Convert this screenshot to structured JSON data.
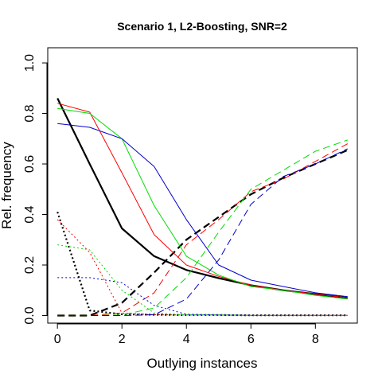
{
  "chart_data": {
    "type": "line",
    "title": "Scenario 1, L2-Boosting, SNR=2",
    "xlabel": "Outlying instances",
    "ylabel": "Rel. frequency",
    "xlim": [
      -0.3,
      9.3
    ],
    "ylim": [
      -0.03,
      1.06
    ],
    "xticks": [
      0,
      2,
      4,
      6,
      8
    ],
    "yticks": [
      0.0,
      0.2,
      0.4,
      0.6,
      0.8,
      1.0
    ],
    "xtick_labels": [
      "0",
      "2",
      "4",
      "6",
      "8"
    ],
    "ytick_labels": [
      "0.0",
      "0.2",
      "0.4",
      "0.6",
      "0.8",
      "1.0"
    ],
    "grid": false,
    "legend": "none",
    "x": [
      0,
      1,
      2,
      3,
      4,
      5,
      6,
      7,
      8,
      9
    ],
    "series": [
      {
        "color": "#000000",
        "dash": "solid",
        "width": 2.2,
        "values": [
          0.86,
          0.6,
          0.345,
          0.235,
          0.18,
          0.148,
          0.12,
          0.1,
          0.085,
          0.07
        ]
      },
      {
        "color": "#000000",
        "dash": "longdash",
        "width": 2.2,
        "values": [
          0.0,
          0.0,
          0.05,
          0.17,
          0.3,
          0.39,
          0.48,
          0.545,
          0.6,
          0.655
        ]
      },
      {
        "color": "#000000",
        "dash": "dotted",
        "width": 2.2,
        "values": [
          0.41,
          0.02,
          0.005,
          0.003,
          0.002,
          0.002,
          0.001,
          0.001,
          0.001,
          0.001
        ]
      },
      {
        "color": "#ff0000",
        "dash": "solid",
        "width": 1,
        "values": [
          0.84,
          0.805,
          0.565,
          0.32,
          0.2,
          0.155,
          0.12,
          0.1,
          0.085,
          0.07
        ]
      },
      {
        "color": "#ff0000",
        "dash": "longdash",
        "width": 1,
        "values": [
          0.0,
          0.0,
          0.01,
          0.09,
          0.28,
          0.38,
          0.49,
          0.54,
          0.61,
          0.68
        ]
      },
      {
        "color": "#ff0000",
        "dash": "dotted",
        "width": 1,
        "values": [
          0.38,
          0.25,
          0.01,
          0.003,
          0.002,
          0.002,
          0.001,
          0.001,
          0.001,
          0.001
        ]
      },
      {
        "color": "#00dd00",
        "dash": "solid",
        "width": 1,
        "values": [
          0.82,
          0.8,
          0.7,
          0.435,
          0.235,
          0.16,
          0.115,
          0.1,
          0.08,
          0.065
        ]
      },
      {
        "color": "#00dd00",
        "dash": "longdash",
        "width": 1,
        "values": [
          0.0,
          0.0,
          0.002,
          0.03,
          0.15,
          0.33,
          0.5,
          0.575,
          0.65,
          0.695
        ]
      },
      {
        "color": "#00dd00",
        "dash": "dotted",
        "width": 1,
        "values": [
          0.28,
          0.26,
          0.1,
          0.01,
          0.002,
          0.002,
          0.001,
          0.001,
          0.001,
          0.001
        ]
      },
      {
        "color": "#0000cc",
        "dash": "solid",
        "width": 1,
        "values": [
          0.76,
          0.745,
          0.7,
          0.59,
          0.38,
          0.2,
          0.14,
          0.115,
          0.09,
          0.075
        ]
      },
      {
        "color": "#0000cc",
        "dash": "longdash",
        "width": 1,
        "values": [
          0.0,
          0.0,
          0.0,
          0.003,
          0.065,
          0.22,
          0.44,
          0.55,
          0.6,
          0.66
        ]
      },
      {
        "color": "#0000cc",
        "dash": "dotted",
        "width": 1,
        "values": [
          0.15,
          0.15,
          0.13,
          0.04,
          0.005,
          0.002,
          0.001,
          0.001,
          0.001,
          0.001
        ]
      }
    ]
  }
}
